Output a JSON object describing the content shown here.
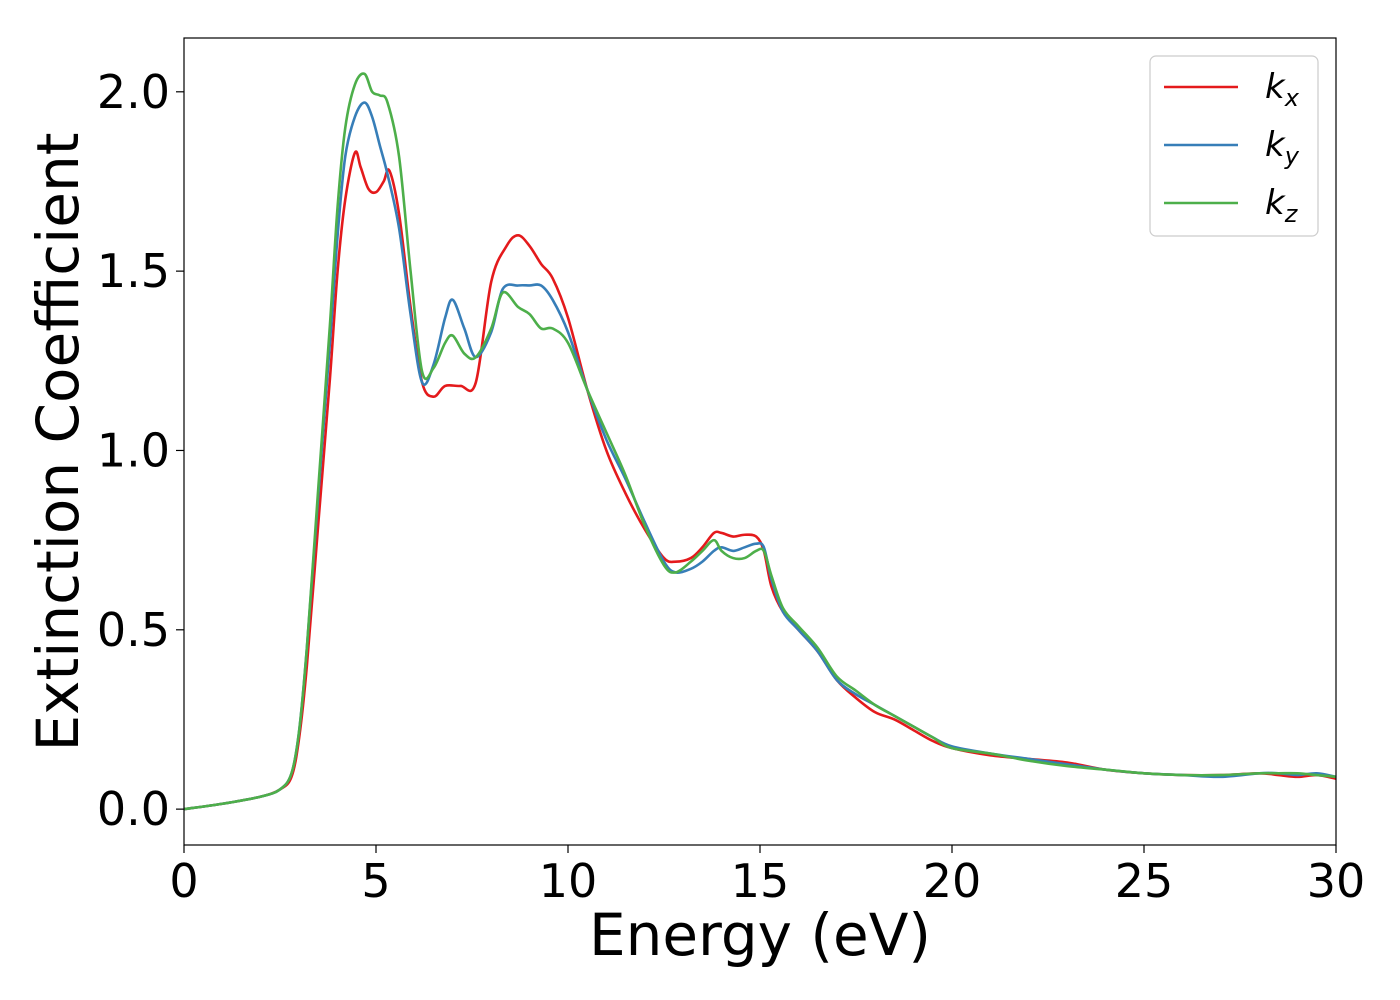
{
  "chart_data": {
    "type": "line",
    "xlabel": "Energy (eV)",
    "ylabel": "Extinction Coefficient",
    "xlim": [
      0,
      30
    ],
    "ylim": [
      -0.1,
      2.15
    ],
    "xticks": [
      0,
      5,
      10,
      15,
      20,
      25,
      30
    ],
    "xtick_labels": [
      "0",
      "5",
      "10",
      "15",
      "20",
      "25",
      "30"
    ],
    "yticks": [
      0.0,
      0.5,
      1.0,
      1.5,
      2.0
    ],
    "ytick_labels": [
      "0.0",
      "0.5",
      "1.0",
      "1.5",
      "2.0"
    ],
    "grid": false,
    "legend_position": "top-right",
    "series": [
      {
        "name": "k",
        "subscript": "x",
        "color": "#e41a1c",
        "x": [
          0,
          1,
          2,
          2.5,
          2.8,
          3.0,
          3.2,
          3.5,
          3.8,
          4.0,
          4.2,
          4.45,
          4.6,
          4.8,
          5.0,
          5.2,
          5.35,
          5.6,
          5.9,
          6.2,
          6.5,
          6.8,
          7.2,
          7.6,
          8.0,
          8.4,
          8.7,
          9.0,
          9.3,
          9.6,
          10.0,
          10.5,
          11.0,
          11.5,
          12.0,
          12.5,
          12.8,
          13.2,
          13.5,
          13.8,
          14.0,
          14.3,
          14.6,
          14.9,
          15.1,
          15.3,
          15.6,
          16.0,
          16.5,
          17.0,
          17.5,
          18.0,
          18.5,
          19.0,
          19.5,
          20.0,
          21.0,
          22.0,
          23.0,
          24.0,
          25.0,
          26.0,
          27.0,
          28.0,
          28.5,
          29.0,
          29.5,
          30.0
        ],
        "y": [
          0.0,
          0.015,
          0.035,
          0.055,
          0.09,
          0.2,
          0.4,
          0.8,
          1.2,
          1.5,
          1.7,
          1.83,
          1.79,
          1.73,
          1.72,
          1.75,
          1.78,
          1.66,
          1.4,
          1.19,
          1.15,
          1.18,
          1.18,
          1.19,
          1.47,
          1.57,
          1.6,
          1.57,
          1.52,
          1.48,
          1.37,
          1.17,
          1.0,
          0.88,
          0.78,
          0.7,
          0.69,
          0.7,
          0.73,
          0.77,
          0.77,
          0.76,
          0.765,
          0.76,
          0.72,
          0.62,
          0.55,
          0.5,
          0.44,
          0.36,
          0.31,
          0.27,
          0.25,
          0.22,
          0.19,
          0.17,
          0.15,
          0.14,
          0.13,
          0.11,
          0.1,
          0.095,
          0.095,
          0.1,
          0.095,
          0.09,
          0.095,
          0.085
        ]
      },
      {
        "name": "k",
        "subscript": "y",
        "color": "#377eb8",
        "x": [
          0,
          1,
          2,
          2.5,
          2.8,
          3.0,
          3.2,
          3.5,
          3.8,
          4.0,
          4.2,
          4.45,
          4.7,
          4.9,
          5.1,
          5.3,
          5.6,
          5.9,
          6.2,
          6.5,
          6.8,
          7.0,
          7.3,
          7.6,
          8.0,
          8.3,
          8.7,
          9.0,
          9.3,
          9.6,
          10.0,
          10.5,
          11.0,
          11.5,
          12.0,
          12.5,
          12.8,
          13.2,
          13.5,
          13.8,
          14.0,
          14.3,
          14.6,
          14.9,
          15.1,
          15.3,
          15.6,
          16.0,
          16.5,
          17.0,
          17.5,
          18.0,
          18.5,
          19.0,
          19.5,
          20.0,
          21.0,
          22.0,
          23.0,
          24.0,
          25.0,
          26.0,
          27.0,
          28.0,
          28.5,
          29.0,
          29.5,
          30.0
        ],
        "y": [
          0.0,
          0.015,
          0.035,
          0.055,
          0.1,
          0.22,
          0.45,
          0.88,
          1.3,
          1.6,
          1.82,
          1.93,
          1.97,
          1.93,
          1.85,
          1.77,
          1.62,
          1.38,
          1.19,
          1.24,
          1.37,
          1.42,
          1.34,
          1.26,
          1.33,
          1.45,
          1.46,
          1.46,
          1.46,
          1.42,
          1.33,
          1.17,
          1.03,
          0.92,
          0.8,
          0.69,
          0.66,
          0.67,
          0.69,
          0.72,
          0.73,
          0.72,
          0.73,
          0.74,
          0.73,
          0.64,
          0.55,
          0.5,
          0.44,
          0.36,
          0.32,
          0.29,
          0.26,
          0.23,
          0.2,
          0.175,
          0.155,
          0.14,
          0.125,
          0.11,
          0.1,
          0.095,
          0.09,
          0.1,
          0.1,
          0.095,
          0.1,
          0.09
        ]
      },
      {
        "name": "k",
        "subscript": "z",
        "color": "#4daf4a",
        "x": [
          0,
          1,
          2,
          2.5,
          2.8,
          3.0,
          3.2,
          3.5,
          3.8,
          4.0,
          4.2,
          4.45,
          4.7,
          4.9,
          5.1,
          5.3,
          5.6,
          5.9,
          6.2,
          6.5,
          6.8,
          7.0,
          7.3,
          7.6,
          8.0,
          8.3,
          8.7,
          9.0,
          9.3,
          9.6,
          10.0,
          10.5,
          11.0,
          11.5,
          12.0,
          12.5,
          12.8,
          13.2,
          13.5,
          13.8,
          14.0,
          14.3,
          14.6,
          14.9,
          15.1,
          15.3,
          15.6,
          16.0,
          16.5,
          17.0,
          17.5,
          18.0,
          18.5,
          19.0,
          19.5,
          20.0,
          21.0,
          22.0,
          23.0,
          24.0,
          25.0,
          26.0,
          27.0,
          28.0,
          28.5,
          29.0,
          29.5,
          30.0
        ],
        "y": [
          0.0,
          0.015,
          0.035,
          0.055,
          0.1,
          0.22,
          0.45,
          0.9,
          1.35,
          1.68,
          1.9,
          2.02,
          2.05,
          2.0,
          1.99,
          1.97,
          1.82,
          1.5,
          1.22,
          1.23,
          1.3,
          1.32,
          1.27,
          1.26,
          1.34,
          1.44,
          1.4,
          1.38,
          1.34,
          1.34,
          1.3,
          1.17,
          1.05,
          0.93,
          0.79,
          0.68,
          0.66,
          0.69,
          0.72,
          0.75,
          0.72,
          0.7,
          0.7,
          0.72,
          0.72,
          0.65,
          0.56,
          0.51,
          0.45,
          0.37,
          0.33,
          0.29,
          0.26,
          0.23,
          0.2,
          0.17,
          0.155,
          0.135,
          0.12,
          0.11,
          0.1,
          0.095,
          0.095,
          0.1,
          0.1,
          0.1,
          0.095,
          0.09
        ]
      }
    ]
  }
}
